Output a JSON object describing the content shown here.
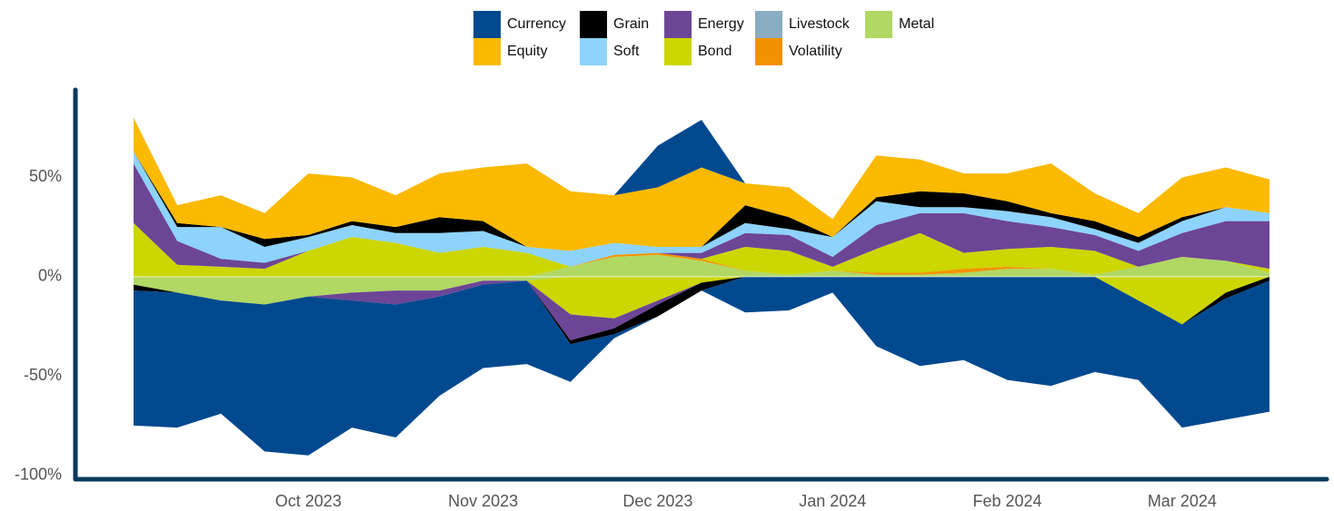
{
  "chart_data": {
    "type": "stacked-area",
    "categories": [
      null,
      null,
      null,
      null,
      "Oct 2023",
      null,
      null,
      null,
      "Nov 2023",
      null,
      null,
      null,
      "Dec 2023",
      null,
      null,
      null,
      "Jan 2024",
      null,
      null,
      null,
      "Feb 2024",
      null,
      null,
      null,
      "Mar 2024",
      null,
      null
    ],
    "series": [
      {
        "name": "Currency",
        "color": "#00498f",
        "values": [
          -68,
          -68,
          -57,
          -74,
          -80,
          -64,
          -67,
          -50,
          -42,
          -42,
          -19,
          -2,
          21,
          24,
          -18,
          -17,
          -8,
          -35,
          -45,
          -42,
          -52,
          -55,
          -48,
          -40,
          -52,
          -61,
          -66
        ]
      },
      {
        "name": "Equity",
        "color": "#fbb900",
        "values": [
          17,
          9,
          16,
          13,
          31,
          22,
          16,
          22,
          27,
          42,
          30,
          24,
          30,
          40,
          11,
          15,
          9,
          21,
          16,
          10,
          14,
          25,
          14,
          12,
          20,
          20,
          17
        ]
      },
      {
        "name": "Grain",
        "color": "#000000",
        "values": [
          -3,
          2,
          0,
          4,
          1,
          2,
          3,
          8,
          5,
          0,
          -2,
          -3,
          -6,
          -4,
          9,
          6,
          0,
          2,
          8,
          7,
          5,
          2,
          4,
          3,
          2,
          -3,
          -2
        ]
      },
      {
        "name": "Soft",
        "color": "#8dd3fb",
        "values": [
          6,
          7,
          16,
          8,
          7,
          6,
          5,
          10,
          8,
          3,
          8,
          6,
          3,
          3,
          5,
          3,
          10,
          12,
          3,
          3,
          5,
          5,
          3,
          4,
          6,
          7,
          4
        ]
      },
      {
        "name": "Energy",
        "color": "#6d4596",
        "values": [
          30,
          12,
          4,
          3,
          0,
          -4,
          -7,
          -3,
          -2,
          0,
          -13,
          -5,
          -2,
          3,
          7,
          8,
          5,
          12,
          10,
          20,
          14,
          10,
          8,
          8,
          12,
          20,
          24
        ]
      },
      {
        "name": "Bond",
        "color": "#ccd600",
        "values": [
          27,
          6,
          5,
          4,
          13,
          20,
          17,
          12,
          15,
          12,
          -19,
          -21,
          -12,
          -3,
          12,
          12,
          2,
          12,
          20,
          8,
          9,
          11,
          12,
          -12,
          -24,
          -8,
          2
        ]
      },
      {
        "name": "Livestock",
        "color": "#8badc2",
        "values": [
          0,
          0,
          0,
          0,
          0,
          0,
          0,
          0,
          0,
          0,
          0,
          0,
          0,
          0,
          0,
          0,
          0,
          0,
          0,
          0,
          0,
          0,
          0,
          0,
          0,
          0,
          0
        ]
      },
      {
        "name": "Volatility",
        "color": "#f39200",
        "values": [
          0,
          0,
          0,
          0,
          0,
          0,
          0,
          0,
          0,
          0,
          0,
          1,
          1,
          1,
          0,
          0,
          0,
          1,
          1,
          2,
          1,
          0,
          0,
          0,
          0,
          0,
          0
        ]
      },
      {
        "name": "Metal",
        "color": "#b0d863",
        "values": [
          -4,
          -8,
          -12,
          -14,
          -10,
          -8,
          -7,
          -7,
          -2,
          -2,
          5,
          10,
          11,
          8,
          3,
          1,
          3,
          1,
          1,
          2,
          4,
          4,
          1,
          5,
          10,
          8,
          2
        ]
      }
    ],
    "ylim": [
      -102,
      95
    ],
    "yticks": [
      {
        "value": -100,
        "label": "-100%"
      },
      {
        "value": -50,
        "label": "-50%"
      },
      {
        "value": 0,
        "label": "0%"
      },
      {
        "value": 50,
        "label": "50%"
      }
    ],
    "grid": false
  }
}
